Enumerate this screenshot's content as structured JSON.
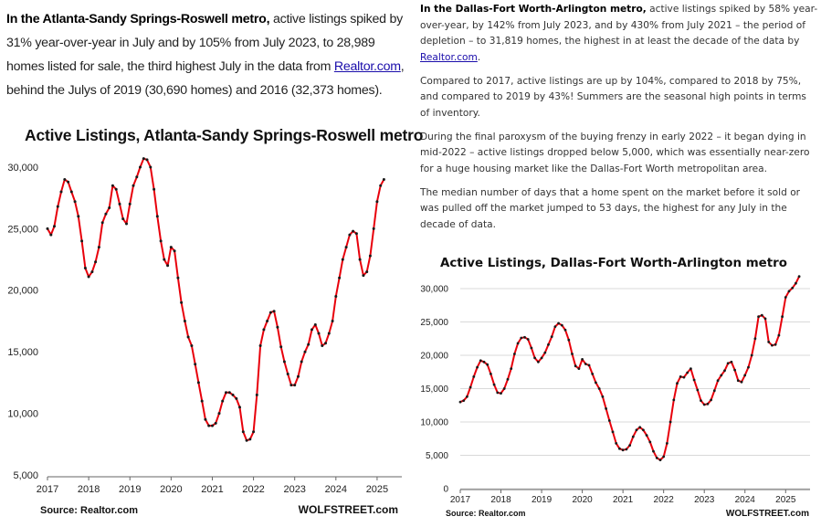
{
  "left_article": {
    "lead": "In the Atlanta-Sandy Springs-Roswell metro,",
    "text_before_link": " active listings spiked by 31% year-over-year in July and by 105% from July 2023, to 28,989 homes listed for sale, the third highest July in the data from ",
    "link": "Realtor.com",
    "text_after_link": ", behind the Julys of 2019 (30,690 homes) and 2016 (32,373 homes)."
  },
  "right_article": {
    "p1_lead": "In the Dallas-Fort Worth-Arlington metro,",
    "p1_before_link": " active listings spiked by 58% year-over-year, by 142% from July 2023, and by 430% from July 2021 – the period of depletion – to 31,819 homes, the highest in at least the decade of the data by ",
    "p1_link": "Realtor.com",
    "p1_after_link": ".",
    "p2": "Compared to 2017, active listings are up by 104%, compared to 2018 by 75%, and compared to 2019 by 43%! Summers are the seasonal high points in terms of inventory.",
    "p3": "During the final paroxysm of the buying frenzy in early 2022 – it began dying in mid-2022 – active listings dropped below 5,000, which was essentially near-zero for a huge housing market like the Dallas-Fort Worth metropolitan area.",
    "p4": "The median number of days that a home spent on the market before it sold or was pulled off the market jumped to 53 days, the highest for any July in the decade of data."
  },
  "colors": {
    "line": "#e8000b",
    "point": "#1a1a1a",
    "grid": "#d9d9d9",
    "text": "#222222",
    "link": "#1a0dab"
  },
  "chart_data": [
    {
      "type": "line",
      "title": "Active Listings, Atlanta-Sandy Springs-Roswell metro",
      "source": "Source: Realtor.com",
      "credit": "WOLFSTREET.com",
      "grid": false,
      "x_range": [
        2017.0,
        2025.6
      ],
      "ylim": [
        5000,
        30000
      ],
      "y_ticks": [
        5000,
        10000,
        15000,
        20000,
        25000,
        30000
      ],
      "y_tick_labels": [
        "5,000",
        "10,000",
        "15,000",
        "20,000",
        "25,000",
        "30,000"
      ],
      "x_ticks": [
        2017,
        2018,
        2019,
        2020,
        2021,
        2022,
        2023,
        2024,
        2025
      ],
      "x_tick_labels": [
        "2017",
        "2018",
        "2019",
        "2020",
        "2021",
        "2022",
        "2023",
        "2024",
        "2025"
      ],
      "series": [
        {
          "start": "2017-01",
          "values": [
            25000,
            24500,
            25200,
            26800,
            28000,
            29000,
            28800,
            28000,
            27200,
            26000,
            24000,
            21800,
            21100,
            21500,
            22300,
            23500,
            25500,
            26200,
            26700,
            28500,
            28200,
            27000,
            25800,
            25400,
            27000,
            28500,
            29200,
            30000,
            30700,
            30600,
            30000,
            28200,
            26000,
            24000,
            22500,
            22000,
            23500,
            23200,
            21000,
            19000,
            17500,
            16200,
            15500,
            14000,
            12500,
            11000,
            9500,
            9000,
            9000,
            9200,
            10000,
            11000,
            11700,
            11700,
            11500,
            11200,
            10500,
            8500,
            7800,
            7900,
            8500,
            11500,
            15500,
            16800,
            17500,
            18200,
            18300,
            17000,
            15400,
            14200,
            13200,
            12300,
            12300,
            13000,
            14200,
            15000,
            15600,
            16800,
            17200,
            16500,
            15500,
            15700,
            16500,
            17500,
            19500,
            21000,
            22500,
            23500,
            24500,
            24800,
            24600,
            22500,
            21200,
            21500,
            22800,
            25000,
            27200,
            28500,
            29000
          ]
        }
      ]
    },
    {
      "type": "line",
      "title": "Active Listings, Dallas-Fort Worth-Arlington metro",
      "source": "Source: Realtor.com",
      "credit": "WOLFSTREET.com",
      "grid": true,
      "x_range": [
        2017.0,
        2025.6
      ],
      "ylim": [
        0,
        30000
      ],
      "y_ticks": [
        0,
        5000,
        10000,
        15000,
        20000,
        25000,
        30000
      ],
      "y_tick_labels": [
        "0",
        "5,000",
        "10,000",
        "15,000",
        "20,000",
        "25,000",
        "30,000"
      ],
      "x_ticks": [
        2017,
        2018,
        2019,
        2020,
        2021,
        2022,
        2023,
        2024,
        2025
      ],
      "x_tick_labels": [
        "2017",
        "2018",
        "2019",
        "2020",
        "2021",
        "2022",
        "2023",
        "2024",
        "2025"
      ],
      "series": [
        {
          "start": "2017-01",
          "values": [
            13000,
            13200,
            13800,
            15200,
            16800,
            18200,
            19200,
            19000,
            18600,
            17200,
            15600,
            14400,
            14300,
            15000,
            16400,
            18000,
            20200,
            21800,
            22600,
            22700,
            22400,
            21100,
            19600,
            19000,
            19600,
            20400,
            21600,
            22800,
            24300,
            24800,
            24500,
            23800,
            22300,
            20200,
            18400,
            18000,
            19400,
            18700,
            18500,
            17200,
            15900,
            15000,
            13800,
            12000,
            10200,
            8500,
            6800,
            6000,
            5800,
            5900,
            6500,
            7800,
            8800,
            9200,
            8800,
            8000,
            7000,
            5600,
            4600,
            4300,
            4800,
            6800,
            10000,
            13300,
            15800,
            16800,
            16700,
            17400,
            18000,
            16300,
            14800,
            13200,
            12600,
            12700,
            13300,
            14700,
            16200,
            17000,
            17700,
            18800,
            19000,
            17800,
            16200,
            16000,
            17000,
            18200,
            20000,
            22500,
            25800,
            26000,
            25500,
            22000,
            21500,
            21600,
            23000,
            25800,
            28700,
            29600,
            30100,
            30800,
            31819
          ]
        }
      ]
    }
  ]
}
